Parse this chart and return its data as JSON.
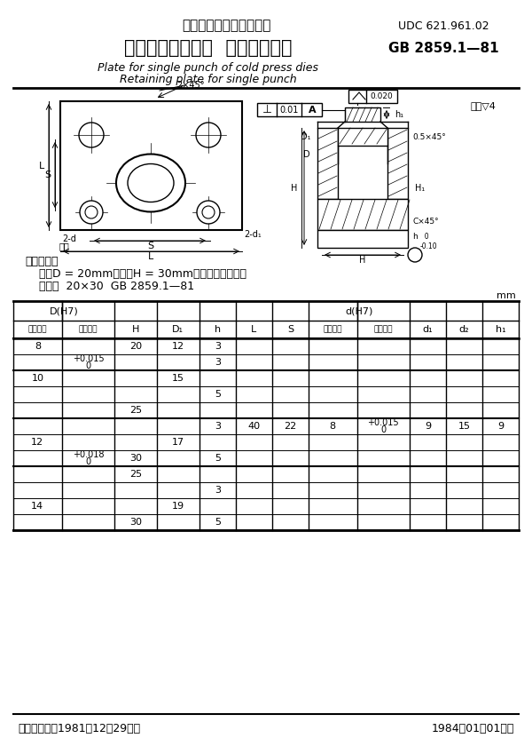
{
  "title_cn": "中华人民共和国国家标准",
  "udc": "UDC 621.961.02",
  "standard_title_cn": "冷冲模单凸模模板  单凸模固定板",
  "standard_id": "GB 2859.1—81",
  "subtitle_en1": "Plate for single punch of cold press dies",
  "subtitle_en2": "Retaining plate for single punch",
  "note_surface": "其余▽4",
  "annotation_label": "标记示例：",
  "annotation_line1": "    孔径D = 20mm、厚度H = 30mm的单凸模固定板：",
  "annotation_line2": "    固定板  20×30  GB 2859.1—81",
  "unit_label": "mm",
  "footer_left": "国家标准总局1981－12－29发布",
  "footer_right": "1984－01－01实施",
  "bg_color": "#ffffff"
}
